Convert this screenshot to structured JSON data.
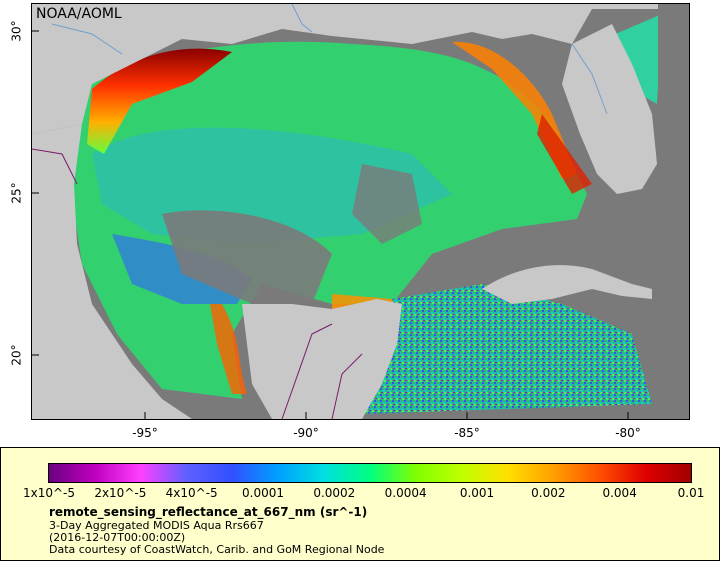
{
  "credit": "NOAA/AOML",
  "lon_labels": [
    "-95°",
    "-90°",
    "-85°",
    "-80°"
  ],
  "lat_labels": [
    "30°",
    "25°",
    "20°"
  ],
  "colorbar_ticks": [
    "1x10^-5",
    "2x10^-5",
    "4x10^-5",
    "0.0001",
    "0.0002",
    "0.0004",
    "0.001",
    "0.002",
    "0.004",
    "0.01"
  ],
  "colorbar_colors": [
    "#6a0080",
    "#c000c0",
    "#ff40ff",
    "#6060ff",
    "#3050ff",
    "#00a0ff",
    "#00e0e0",
    "#00ff80",
    "#80ff00",
    "#c0ff00",
    "#ffe000",
    "#ffa000",
    "#ff5000",
    "#e00000",
    "#a00000"
  ],
  "legend": {
    "variable": "remote_sensing_reflectance_at_667_nm (sr^-1)",
    "product": "3-Day Aggregated MODIS Aqua Rrs667",
    "time": "(2016-12-07T00:00:00Z)",
    "source": "Data courtesy of CoastWatch, Carib. and GoM Regional Node"
  },
  "colors": {
    "land": "#c8c8c8",
    "nodata": "#7a7a7a",
    "panel": "#ffffcc",
    "border_line": "#7a1a6a",
    "river": "#6fa0d0"
  }
}
